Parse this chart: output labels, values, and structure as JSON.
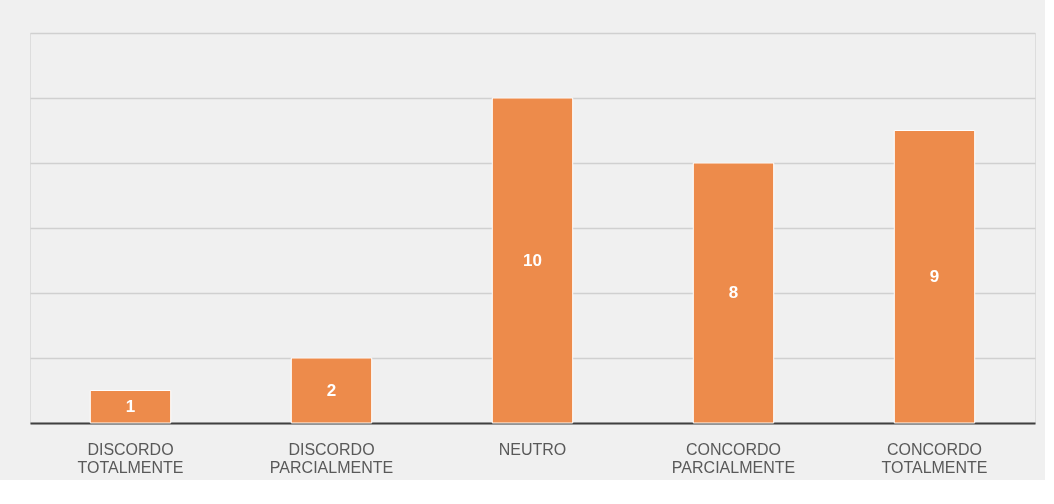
{
  "chart_data": {
    "type": "bar",
    "categories": [
      "DISCORDO TOTALMENTE",
      "DISCORDO PARCIALMENTE",
      "NEUTRO",
      "CONCORDO PARCIALMENTE",
      "CONCORDO TOTALMENTE"
    ],
    "values": [
      1,
      2,
      10,
      8,
      9
    ],
    "color": "#ed8b4b",
    "ylim": [
      0,
      12
    ],
    "yticks": [
      {
        "value": 0,
        "label": null
      },
      {
        "value": 2,
        "label": null
      },
      {
        "value": 4,
        "label": null
      },
      {
        "value": 6,
        "label": null
      },
      {
        "value": 8,
        "label": null
      },
      {
        "value": 10,
        "label": null
      },
      {
        "value": 12,
        "label": null
      }
    ],
    "grid": "y",
    "tick_labels": "x",
    "data_labels": true
  }
}
